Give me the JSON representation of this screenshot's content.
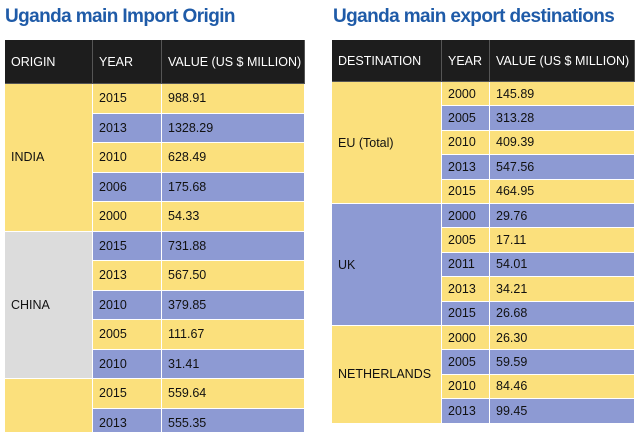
{
  "tables": [
    {
      "title": "Uganda main Import Origin",
      "headers": [
        "ORIGIN",
        "YEAR",
        "VALUE (US $ MILLION)"
      ],
      "groups": [
        {
          "name": "INDIA",
          "rows": [
            [
              "2015",
              "988.91"
            ],
            [
              "2013",
              "1328.29"
            ],
            [
              "2010",
              "628.49"
            ],
            [
              "2006",
              "175.68"
            ],
            [
              "2000",
              "54.33"
            ]
          ]
        },
        {
          "name": "CHINA",
          "rows": [
            [
              "2015",
              "731.88"
            ],
            [
              "2013",
              "567.50"
            ],
            [
              "2010",
              "379.85"
            ],
            [
              "2005",
              "111.67"
            ],
            [
              "2010",
              "31.41"
            ]
          ]
        },
        {
          "name": null,
          "rows": [
            [
              "2015",
              "559.64"
            ],
            [
              "2013",
              "555.35"
            ]
          ]
        }
      ]
    },
    {
      "title": "Uganda main export destinations",
      "headers": [
        "DESTINATION",
        "YEAR",
        "VALUE (US $ MILLION)"
      ],
      "groups": [
        {
          "name": "EU (Total)",
          "rows": [
            [
              "2000",
              "145.89"
            ],
            [
              "2005",
              "313.28"
            ],
            [
              "2010",
              "409.39"
            ],
            [
              "2013",
              "547.56"
            ],
            [
              "2015",
              "464.95"
            ]
          ]
        },
        {
          "name": "UK",
          "rows": [
            [
              "2000",
              "29.76"
            ],
            [
              "2005",
              "17.11"
            ],
            [
              "2011",
              "54.01"
            ],
            [
              "2013",
              "34.21"
            ],
            [
              "2015",
              "26.68"
            ]
          ]
        },
        {
          "name": "NETHERLANDS",
          "rows": [
            [
              "2000",
              "26.30"
            ],
            [
              "2005",
              "59.59"
            ],
            [
              "2010",
              "84.46"
            ],
            [
              "2013",
              "99.45"
            ]
          ]
        }
      ]
    }
  ]
}
